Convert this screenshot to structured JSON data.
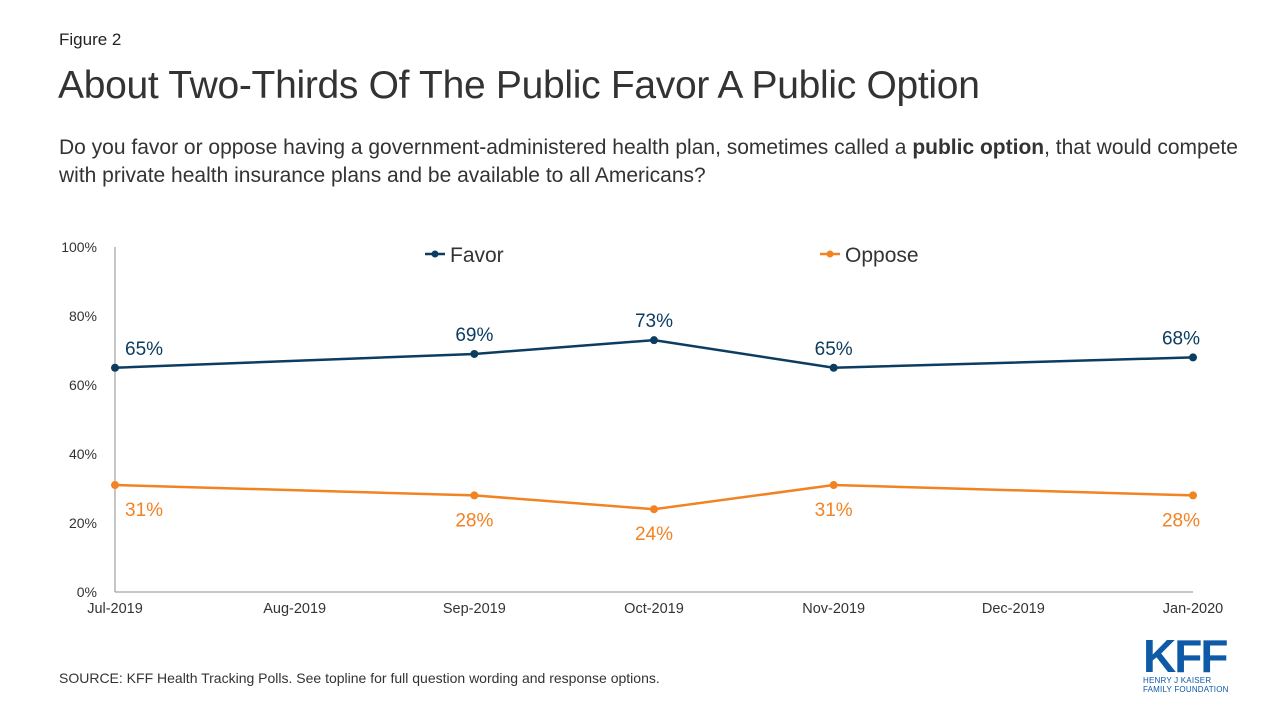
{
  "figure_label": "Figure 2",
  "title": "About Two-Thirds Of The Public Favor A Public Option",
  "subtitle": {
    "before": "Do you favor or oppose having a government-administered health plan, sometimes called a ",
    "bold": "public option",
    "after": ", that would compete with private health insurance plans and be available to all Americans?"
  },
  "source": "SOURCE: KFF Health Tracking Polls. See topline for full question wording and response options.",
  "logo": {
    "mark": "KFF",
    "line1": "HENRY J KAISER",
    "line2": "FAMILY FOUNDATION"
  },
  "chart_data": {
    "type": "line",
    "categories": [
      "Jul-2019",
      "Aug-2019",
      "Sep-2019",
      "Oct-2019",
      "Nov-2019",
      "Dec-2019",
      "Jan-2020"
    ],
    "y_ticks": [
      "0%",
      "20%",
      "40%",
      "60%",
      "80%",
      "100%"
    ],
    "ylim": [
      0,
      100
    ],
    "legend_position": "top",
    "series": [
      {
        "name": "Favor",
        "color": "#0c3c60",
        "points": [
          {
            "x": "Jul-2019",
            "y": 65,
            "label": "65%"
          },
          {
            "x": "Sep-2019",
            "y": 69,
            "label": "69%"
          },
          {
            "x": "Oct-2019",
            "y": 73,
            "label": "73%"
          },
          {
            "x": "Nov-2019",
            "y": 65,
            "label": "65%"
          },
          {
            "x": "Jan-2020",
            "y": 68,
            "label": "68%"
          }
        ]
      },
      {
        "name": "Oppose",
        "color": "#f28222",
        "points": [
          {
            "x": "Jul-2019",
            "y": 31,
            "label": "31%"
          },
          {
            "x": "Sep-2019",
            "y": 28,
            "label": "28%"
          },
          {
            "x": "Oct-2019",
            "y": 24,
            "label": "24%"
          },
          {
            "x": "Nov-2019",
            "y": 31,
            "label": "31%"
          },
          {
            "x": "Jan-2020",
            "y": 28,
            "label": "28%"
          }
        ]
      }
    ]
  }
}
